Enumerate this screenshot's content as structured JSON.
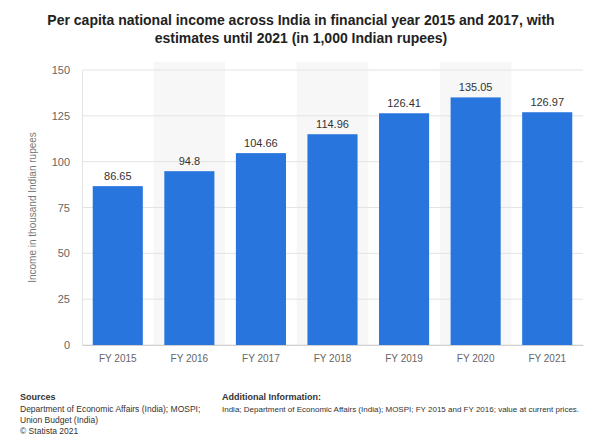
{
  "chart_data": {
    "type": "bar",
    "title": "Per capita national income across India in financial year 2015 and 2017, with estimates until 2021 (in 1,000 Indian rupees)",
    "ylabel": "Income in thousand Indian rupees",
    "categories": [
      "FY 2015",
      "FY 2016",
      "FY 2017",
      "FY 2018",
      "FY 2019",
      "FY 2020",
      "FY 2021"
    ],
    "values": [
      86.65,
      94.8,
      104.66,
      114.96,
      126.41,
      135.05,
      126.97
    ],
    "color": "#2876dd",
    "ylim": [
      0,
      150
    ],
    "yticks": [
      0,
      25,
      50,
      75,
      100,
      125,
      150
    ],
    "grid": true,
    "data_labels": true,
    "source_title": "Sources",
    "source_lines": [
      "Department of Economic Affairs (India); MOSPI;",
      "Union Budget (India)"
    ],
    "credit": "© Statista 2021",
    "info_title": "Additional Information:",
    "info": "India; Department of Economic Affairs (India); MOSPI; FY 2015 and FY 2016; value at current prices."
  }
}
